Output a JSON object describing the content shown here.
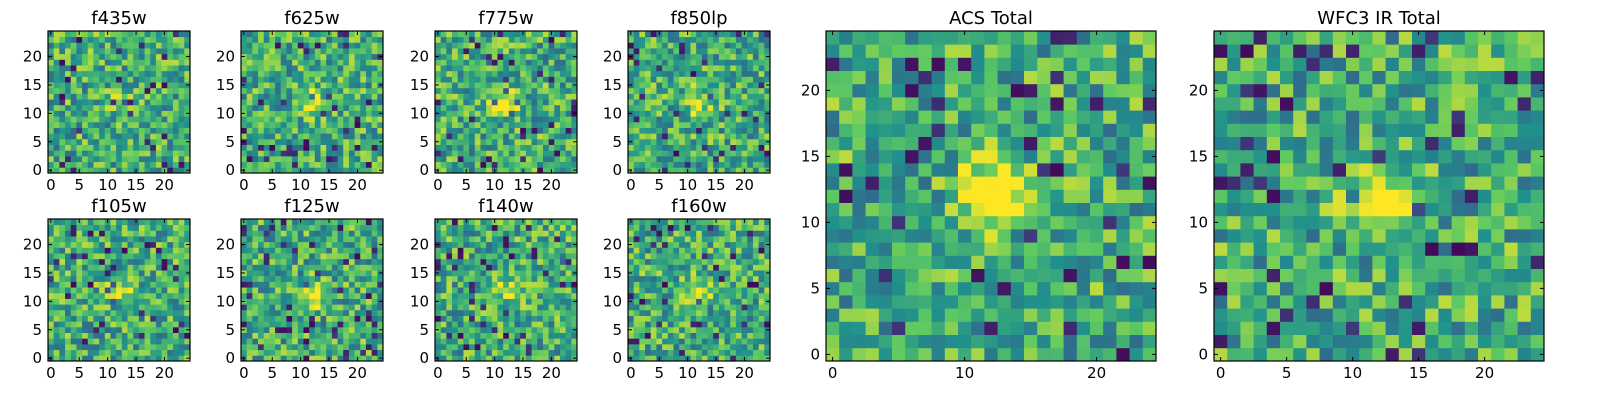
{
  "colormap": [
    "#440154",
    "#3b528b",
    "#21918c",
    "#5ec962",
    "#fde725"
  ],
  "chart_data": [
    {
      "type": "heatmap",
      "title": "f435w",
      "grid_size": 25,
      "xticks": [
        0,
        5,
        10,
        15,
        20
      ],
      "yticks": [
        0,
        5,
        10,
        15,
        20
      ],
      "source_peak": [
        12,
        12
      ],
      "source_strength": 0.15
    },
    {
      "type": "heatmap",
      "title": "f625w",
      "grid_size": 25,
      "xticks": [
        0,
        5,
        10,
        15,
        20
      ],
      "yticks": [
        0,
        5,
        10,
        15,
        20
      ],
      "source_peak": [
        12,
        12
      ],
      "source_strength": 0.45
    },
    {
      "type": "heatmap",
      "title": "f775w",
      "grid_size": 25,
      "xticks": [
        0,
        5,
        10,
        15,
        20
      ],
      "yticks": [
        0,
        5,
        10,
        15,
        20
      ],
      "source_peak": [
        12,
        12
      ],
      "source_strength": 0.55
    },
    {
      "type": "heatmap",
      "title": "f850lp",
      "grid_size": 25,
      "xticks": [
        0,
        5,
        10,
        15,
        20
      ],
      "yticks": [
        0,
        5,
        10,
        15,
        20
      ],
      "source_peak": [
        12,
        12
      ],
      "source_strength": 0.35
    },
    {
      "type": "heatmap",
      "title": "ACS Total",
      "grid_size": 25,
      "xticks": [
        0,
        10,
        20
      ],
      "yticks": [
        0,
        5,
        10,
        15,
        20
      ],
      "source_peak": [
        12,
        12
      ],
      "source_strength": 0.7
    },
    {
      "type": "heatmap",
      "title": "WFC3 IR Total",
      "grid_size": 25,
      "xticks": [
        0,
        5,
        10,
        15,
        20
      ],
      "yticks": [
        0,
        5,
        10,
        15,
        20
      ],
      "source_peak": [
        12,
        12
      ],
      "source_strength": 0.55
    },
    {
      "type": "heatmap",
      "title": "f105w",
      "grid_size": 25,
      "xticks": [
        0,
        5,
        10,
        15,
        20
      ],
      "yticks": [
        0,
        5,
        10,
        15,
        20
      ],
      "source_peak": [
        12,
        12
      ],
      "source_strength": 0.35
    },
    {
      "type": "heatmap",
      "title": "f125w",
      "grid_size": 25,
      "xticks": [
        0,
        5,
        10,
        15,
        20
      ],
      "yticks": [
        0,
        5,
        10,
        15,
        20
      ],
      "source_peak": [
        12,
        11
      ],
      "source_strength": 0.45
    },
    {
      "type": "heatmap",
      "title": "f140w",
      "grid_size": 25,
      "xticks": [
        0,
        5,
        10,
        15,
        20
      ],
      "yticks": [
        0,
        5,
        10,
        15,
        20
      ],
      "source_peak": [
        12,
        12
      ],
      "source_strength": 0.3
    },
    {
      "type": "heatmap",
      "title": "f160w",
      "grid_size": 25,
      "xticks": [
        0,
        5,
        10,
        15,
        20
      ],
      "yticks": [
        0,
        5,
        10,
        15,
        20
      ],
      "source_peak": [
        12,
        12
      ],
      "source_strength": 0.3
    }
  ]
}
